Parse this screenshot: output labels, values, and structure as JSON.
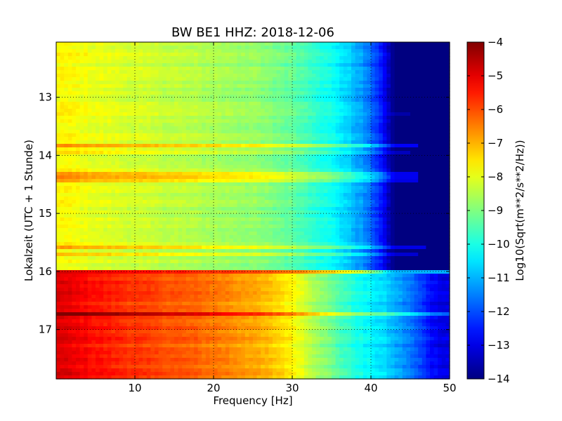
{
  "chart_data": {
    "type": "heatmap",
    "title": "BW BE1 HHZ: 2018-12-06",
    "xlabel": "Frequency [Hz]",
    "ylabel": "Lokalzeit (UTC + 1 Stunde)",
    "xlim": [
      0,
      50
    ],
    "ylim": [
      12.05,
      17.85
    ],
    "y_inverted": true,
    "x_ticks": [
      10,
      20,
      30,
      40,
      50
    ],
    "x_tick_labels": [
      "10",
      "20",
      "30",
      "40",
      "50"
    ],
    "y_ticks": [
      13,
      14,
      15,
      16,
      17
    ],
    "y_tick_labels": [
      "13",
      "14",
      "15",
      "16",
      "17"
    ],
    "grid": true,
    "colormap": "jet",
    "colorbar": {
      "label": "Log10(Sqrt(m**2/s**2/Hz))",
      "min": -14,
      "max": -4,
      "ticks": [
        -4,
        -5,
        -6,
        -7,
        -8,
        -9,
        -10,
        -11,
        -12,
        -13,
        -14
      ],
      "tick_labels": [
        "−4",
        "−5",
        "−6",
        "−7",
        "−8",
        "−9",
        "−10",
        "−11",
        "−12",
        "−13",
        "−14"
      ]
    },
    "regions": [
      {
        "name": "quiet",
        "time_range": [
          12.05,
          16.02
        ],
        "profile": {
          "frequency": [
            0,
            5,
            10,
            15,
            20,
            25,
            30,
            33,
            36,
            39,
            41,
            42,
            43,
            50
          ],
          "value": [
            -7.7,
            -8.0,
            -8.2,
            -8.4,
            -8.6,
            -8.8,
            -9.3,
            -9.8,
            -10.4,
            -11.3,
            -12.3,
            -13.2,
            -14.0,
            -14.0
          ]
        }
      },
      {
        "name": "active",
        "time_range": [
          16.02,
          17.85
        ],
        "profile": {
          "frequency": [
            0,
            5,
            10,
            15,
            20,
            25,
            28,
            30,
            33,
            36,
            39,
            42,
            45,
            48,
            50
          ],
          "value": [
            -4.9,
            -5.4,
            -5.8,
            -6.1,
            -6.4,
            -6.9,
            -7.3,
            -7.7,
            -8.6,
            -9.5,
            -10.2,
            -10.7,
            -11.6,
            -12.8,
            -13.1
          ]
        }
      }
    ],
    "bands": [
      {
        "time": 13.3,
        "delta": 0.4,
        "f_max": 45
      },
      {
        "time": 13.83,
        "delta": 1.2,
        "f_max": 46
      },
      {
        "time": 13.97,
        "delta": 0.6,
        "f_max": 45
      },
      {
        "time": 14.34,
        "delta": 1.1,
        "f_max": 46
      },
      {
        "time": 14.44,
        "delta": 1.0,
        "f_max": 46
      },
      {
        "time": 15.6,
        "delta": 1.0,
        "f_max": 47
      },
      {
        "time": 15.7,
        "delta": 0.8,
        "f_max": 46
      },
      {
        "time": 16.02,
        "delta": 3.0,
        "f_max": 50
      },
      {
        "time": 16.74,
        "delta": 1.3,
        "f_max": 50
      }
    ]
  }
}
